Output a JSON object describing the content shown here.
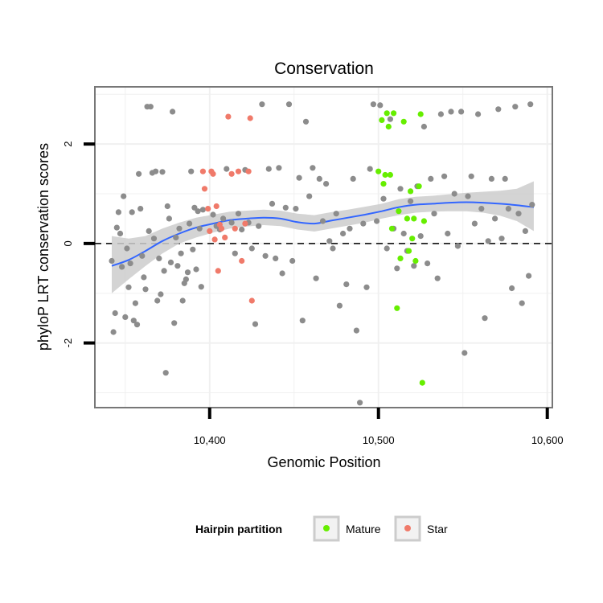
{
  "chart_data": {
    "type": "scatter",
    "title": "Conservation",
    "xlabel": "Genomic Position",
    "ylabel": "phyloP LRT conservation scores",
    "xlim": [
      10332,
      10603
    ],
    "ylim": [
      -3.3,
      3.15
    ],
    "x_ticks": [
      {
        "value": 10400,
        "label": "10,400"
      },
      {
        "value": 10500,
        "label": "10,500"
      },
      {
        "value": 10600,
        "label": "10,600"
      }
    ],
    "y_ticks": [
      {
        "value": -2,
        "label": "-2"
      },
      {
        "value": 0,
        "label": "0"
      },
      {
        "value": 2,
        "label": "2"
      }
    ],
    "reference_line": {
      "y": 0,
      "style": "dashed"
    },
    "grid": true,
    "legend": {
      "title": "Hairpin partition",
      "position": "bottom",
      "entries": [
        {
          "label": "Mature",
          "color": "#66ee00"
        },
        {
          "label": "Star",
          "color": "#f07a6a"
        }
      ]
    },
    "colors": {
      "other": "#8c8c8c",
      "Mature": "#66ee00",
      "Star": "#f07a6a",
      "smooth": "#3366ff",
      "band": "#cccccc"
    },
    "series": [
      {
        "group": "other",
        "points": [
          [
            10342,
            -0.35
          ],
          [
            10343,
            -1.78
          ],
          [
            10344,
            -1.4
          ],
          [
            10345,
            0.32
          ],
          [
            10346,
            0.63
          ],
          [
            10347,
            0.2
          ],
          [
            10348,
            -0.47
          ],
          [
            10349,
            0.95
          ],
          [
            10350,
            -1.48
          ],
          [
            10351,
            -0.1
          ],
          [
            10352,
            -0.88
          ],
          [
            10353,
            -0.4
          ],
          [
            10354,
            0.63
          ],
          [
            10355,
            -1.55
          ],
          [
            10356,
            -1.2
          ],
          [
            10357,
            -1.63
          ],
          [
            10358,
            1.4
          ],
          [
            10359,
            0.7
          ],
          [
            10360,
            -0.25
          ],
          [
            10361,
            -0.68
          ],
          [
            10362,
            -0.92
          ],
          [
            10363,
            2.75
          ],
          [
            10364,
            0.25
          ],
          [
            10365,
            2.75
          ],
          [
            10366,
            1.42
          ],
          [
            10367,
            0.1
          ],
          [
            10368,
            1.45
          ],
          [
            10369,
            -1.15
          ],
          [
            10370,
            -0.3
          ],
          [
            10371,
            -1.02
          ],
          [
            10372,
            1.44
          ],
          [
            10373,
            -0.55
          ],
          [
            10374,
            -2.6
          ],
          [
            10375,
            0.75
          ],
          [
            10376,
            0.5
          ],
          [
            10377,
            -0.38
          ],
          [
            10378,
            2.65
          ],
          [
            10379,
            -1.6
          ],
          [
            10380,
            0.12
          ],
          [
            10381,
            -0.45
          ],
          [
            10382,
            0.3
          ],
          [
            10383,
            -0.2
          ],
          [
            10384,
            -1.15
          ],
          [
            10385,
            -0.8
          ],
          [
            10386,
            -0.72
          ],
          [
            10387,
            -0.58
          ],
          [
            10388,
            0.4
          ],
          [
            10389,
            1.45
          ],
          [
            10390,
            -0.12
          ],
          [
            10391,
            0.72
          ],
          [
            10392,
            -0.52
          ],
          [
            10393,
            0.65
          ],
          [
            10394,
            0.3
          ],
          [
            10395,
            -0.87
          ],
          [
            10396,
            0.68
          ],
          [
            10402,
            0.58
          ],
          [
            10404,
            0.35
          ],
          [
            10406,
            0.28
          ],
          [
            10408,
            0.5
          ],
          [
            10410,
            1.5
          ],
          [
            10413,
            0.42
          ],
          [
            10415,
            -0.2
          ],
          [
            10417,
            0.6
          ],
          [
            10419,
            0.28
          ],
          [
            10421,
            1.48
          ],
          [
            10423,
            0.42
          ],
          [
            10425,
            -0.1
          ],
          [
            10427,
            -1.62
          ],
          [
            10429,
            0.35
          ],
          [
            10431,
            2.8
          ],
          [
            10433,
            -0.25
          ],
          [
            10435,
            1.5
          ],
          [
            10437,
            0.8
          ],
          [
            10439,
            -0.3
          ],
          [
            10441,
            1.52
          ],
          [
            10443,
            -0.6
          ],
          [
            10445,
            0.72
          ],
          [
            10447,
            2.8
          ],
          [
            10449,
            -0.35
          ],
          [
            10451,
            0.7
          ],
          [
            10453,
            1.32
          ],
          [
            10455,
            -1.55
          ],
          [
            10457,
            2.45
          ],
          [
            10459,
            0.95
          ],
          [
            10461,
            1.52
          ],
          [
            10463,
            -0.7
          ],
          [
            10465,
            1.3
          ],
          [
            10467,
            0.45
          ],
          [
            10469,
            1.2
          ],
          [
            10471,
            0.05
          ],
          [
            10473,
            -0.1
          ],
          [
            10475,
            0.6
          ],
          [
            10477,
            -1.25
          ],
          [
            10479,
            0.2
          ],
          [
            10481,
            -0.82
          ],
          [
            10483,
            0.3
          ],
          [
            10485,
            1.3
          ],
          [
            10487,
            -1.75
          ],
          [
            10489,
            -3.2
          ],
          [
            10491,
            0.4
          ],
          [
            10493,
            -0.88
          ],
          [
            10495,
            1.5
          ],
          [
            10497,
            2.8
          ],
          [
            10499,
            0.45
          ],
          [
            10501,
            2.78
          ],
          [
            10503,
            0.9
          ],
          [
            10505,
            -0.1
          ],
          [
            10507,
            2.5
          ],
          [
            10509,
            0.3
          ],
          [
            10511,
            -0.5
          ],
          [
            10513,
            1.1
          ],
          [
            10515,
            0.2
          ],
          [
            10517,
            -0.15
          ],
          [
            10519,
            0.85
          ],
          [
            10521,
            -0.45
          ],
          [
            10523,
            1.15
          ],
          [
            10525,
            0.15
          ],
          [
            10527,
            2.35
          ],
          [
            10529,
            -0.4
          ],
          [
            10531,
            1.3
          ],
          [
            10533,
            0.6
          ],
          [
            10535,
            -0.7
          ],
          [
            10537,
            2.6
          ],
          [
            10539,
            1.35
          ],
          [
            10541,
            0.2
          ],
          [
            10543,
            2.65
          ],
          [
            10545,
            1.0
          ],
          [
            10547,
            -0.05
          ],
          [
            10549,
            2.65
          ],
          [
            10551,
            -2.2
          ],
          [
            10553,
            0.95
          ],
          [
            10555,
            1.35
          ],
          [
            10557,
            0.4
          ],
          [
            10559,
            2.6
          ],
          [
            10561,
            0.7
          ],
          [
            10563,
            -1.5
          ],
          [
            10565,
            0.05
          ],
          [
            10567,
            1.3
          ],
          [
            10569,
            0.5
          ],
          [
            10571,
            2.7
          ],
          [
            10573,
            0.1
          ],
          [
            10575,
            1.3
          ],
          [
            10577,
            0.7
          ],
          [
            10579,
            -0.9
          ],
          [
            10581,
            2.75
          ],
          [
            10583,
            0.6
          ],
          [
            10585,
            -1.2
          ],
          [
            10587,
            0.25
          ],
          [
            10589,
            -0.65
          ],
          [
            10590,
            2.8
          ],
          [
            10591,
            0.78
          ]
        ]
      },
      {
        "group": "Star",
        "points": [
          [
            10396,
            1.45
          ],
          [
            10397,
            1.1
          ],
          [
            10399,
            0.7
          ],
          [
            10400,
            0.25
          ],
          [
            10401,
            1.45
          ],
          [
            10402,
            1.4
          ],
          [
            10403,
            0.08
          ],
          [
            10404,
            0.75
          ],
          [
            10405,
            -0.55
          ],
          [
            10406,
            0.38
          ],
          [
            10407,
            0.3
          ],
          [
            10409,
            0.12
          ],
          [
            10411,
            2.55
          ],
          [
            10413,
            1.4
          ],
          [
            10415,
            0.3
          ],
          [
            10417,
            1.45
          ],
          [
            10419,
            -0.35
          ],
          [
            10421,
            0.4
          ],
          [
            10423,
            1.45
          ],
          [
            10424,
            2.52
          ],
          [
            10425,
            -1.15
          ]
        ]
      },
      {
        "group": "Mature",
        "points": [
          [
            10500,
            1.45
          ],
          [
            10502,
            2.48
          ],
          [
            10503,
            1.2
          ],
          [
            10504,
            1.38
          ],
          [
            10505,
            2.62
          ],
          [
            10506,
            2.35
          ],
          [
            10507,
            1.38
          ],
          [
            10508,
            0.3
          ],
          [
            10509,
            2.62
          ],
          [
            10511,
            -1.3
          ],
          [
            10512,
            0.65
          ],
          [
            10513,
            -0.3
          ],
          [
            10515,
            2.45
          ],
          [
            10517,
            0.5
          ],
          [
            10518,
            -0.15
          ],
          [
            10519,
            1.05
          ],
          [
            10520,
            0.1
          ],
          [
            10521,
            0.5
          ],
          [
            10522,
            -0.35
          ],
          [
            10524,
            1.15
          ],
          [
            10525,
            2.6
          ],
          [
            10526,
            -2.8
          ],
          [
            10527,
            0.45
          ]
        ]
      }
    ],
    "smooth": {
      "x": [
        10342,
        10352,
        10362,
        10372,
        10382,
        10392,
        10402,
        10412,
        10422,
        10432,
        10442,
        10452,
        10462,
        10472,
        10482,
        10492,
        10502,
        10512,
        10522,
        10532,
        10542,
        10552,
        10562,
        10572,
        10582,
        10592
      ],
      "y": [
        -0.45,
        -0.33,
        -0.15,
        0.05,
        0.2,
        0.32,
        0.4,
        0.47,
        0.5,
        0.52,
        0.5,
        0.43,
        0.4,
        0.46,
        0.52,
        0.58,
        0.65,
        0.73,
        0.78,
        0.8,
        0.82,
        0.83,
        0.82,
        0.8,
        0.77,
        0.73
      ],
      "lower": [
        -1.0,
        -0.72,
        -0.45,
        -0.2,
        0.0,
        0.12,
        0.22,
        0.3,
        0.34,
        0.37,
        0.35,
        0.28,
        0.24,
        0.3,
        0.36,
        0.42,
        0.5,
        0.57,
        0.62,
        0.64,
        0.65,
        0.65,
        0.62,
        0.56,
        0.45,
        0.25
      ],
      "upper": [
        0.15,
        0.1,
        0.15,
        0.3,
        0.42,
        0.52,
        0.58,
        0.64,
        0.66,
        0.68,
        0.66,
        0.6,
        0.57,
        0.63,
        0.68,
        0.74,
        0.8,
        0.89,
        0.94,
        0.96,
        0.99,
        1.02,
        1.04,
        1.06,
        1.1,
        1.25
      ]
    }
  }
}
